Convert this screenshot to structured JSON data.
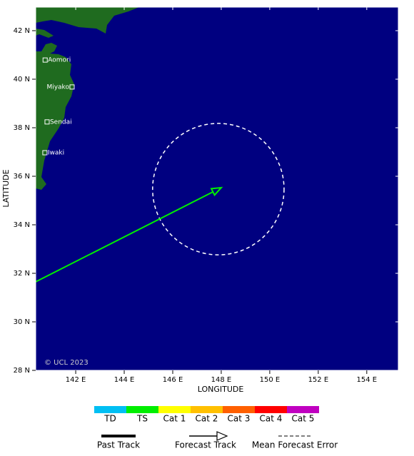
{
  "map": {
    "xlabel": "LONGITUDE",
    "ylabel": "LATITUDE",
    "xlim": [
      140.35,
      155.3
    ],
    "ylim": [
      28,
      42.97
    ],
    "xticks": [
      {
        "value": 142,
        "label": "142 E"
      },
      {
        "value": 144,
        "label": "144 E"
      },
      {
        "value": 146,
        "label": "146 E"
      },
      {
        "value": 148,
        "label": "148 E"
      },
      {
        "value": 150,
        "label": "150 E"
      },
      {
        "value": 152,
        "label": "152 E"
      },
      {
        "value": 154,
        "label": "154 E"
      }
    ],
    "yticks": [
      {
        "value": 28,
        "label": "28 N"
      },
      {
        "value": 30,
        "label": "30 N"
      },
      {
        "value": 32,
        "label": "32 N"
      },
      {
        "value": 34,
        "label": "34 N"
      },
      {
        "value": 36,
        "label": "36 N"
      },
      {
        "value": 38,
        "label": "38 N"
      },
      {
        "value": 40,
        "label": "40 N"
      },
      {
        "value": 42,
        "label": "42 N"
      }
    ],
    "cities": [
      {
        "name": "Aomori",
        "lon": 140.74,
        "lat": 40.79
      },
      {
        "name": "Miyako",
        "lon": 141.85,
        "lat": 39.68
      },
      {
        "name": "Sendai",
        "lon": 140.82,
        "lat": 38.24
      },
      {
        "name": "Iwaki",
        "lon": 140.73,
        "lat": 36.97
      }
    ],
    "track": {
      "color": "#00ee00",
      "lon": [
        140.35,
        148
      ],
      "lat": [
        31.65,
        35.53
      ]
    },
    "forecast_error": {
      "lon": 147.88,
      "lat": 35.47,
      "radius": 2.71
    },
    "credit": "© UCL 2023"
  },
  "legend": {
    "categories": [
      {
        "name": "TD",
        "color": "#00bff3"
      },
      {
        "name": "TS",
        "color": "#00ee00"
      },
      {
        "name": "Cat 1",
        "color": "#ffff00"
      },
      {
        "name": "Cat 2",
        "color": "#ffc000"
      },
      {
        "name": "Cat 3",
        "color": "#ff6000"
      },
      {
        "name": "Cat 4",
        "color": "#ff0000"
      },
      {
        "name": "Cat 5",
        "color": "#c000c0"
      }
    ],
    "tracks": [
      "Past Track",
      "Forecast Track",
      "Mean Forecast Error"
    ]
  }
}
